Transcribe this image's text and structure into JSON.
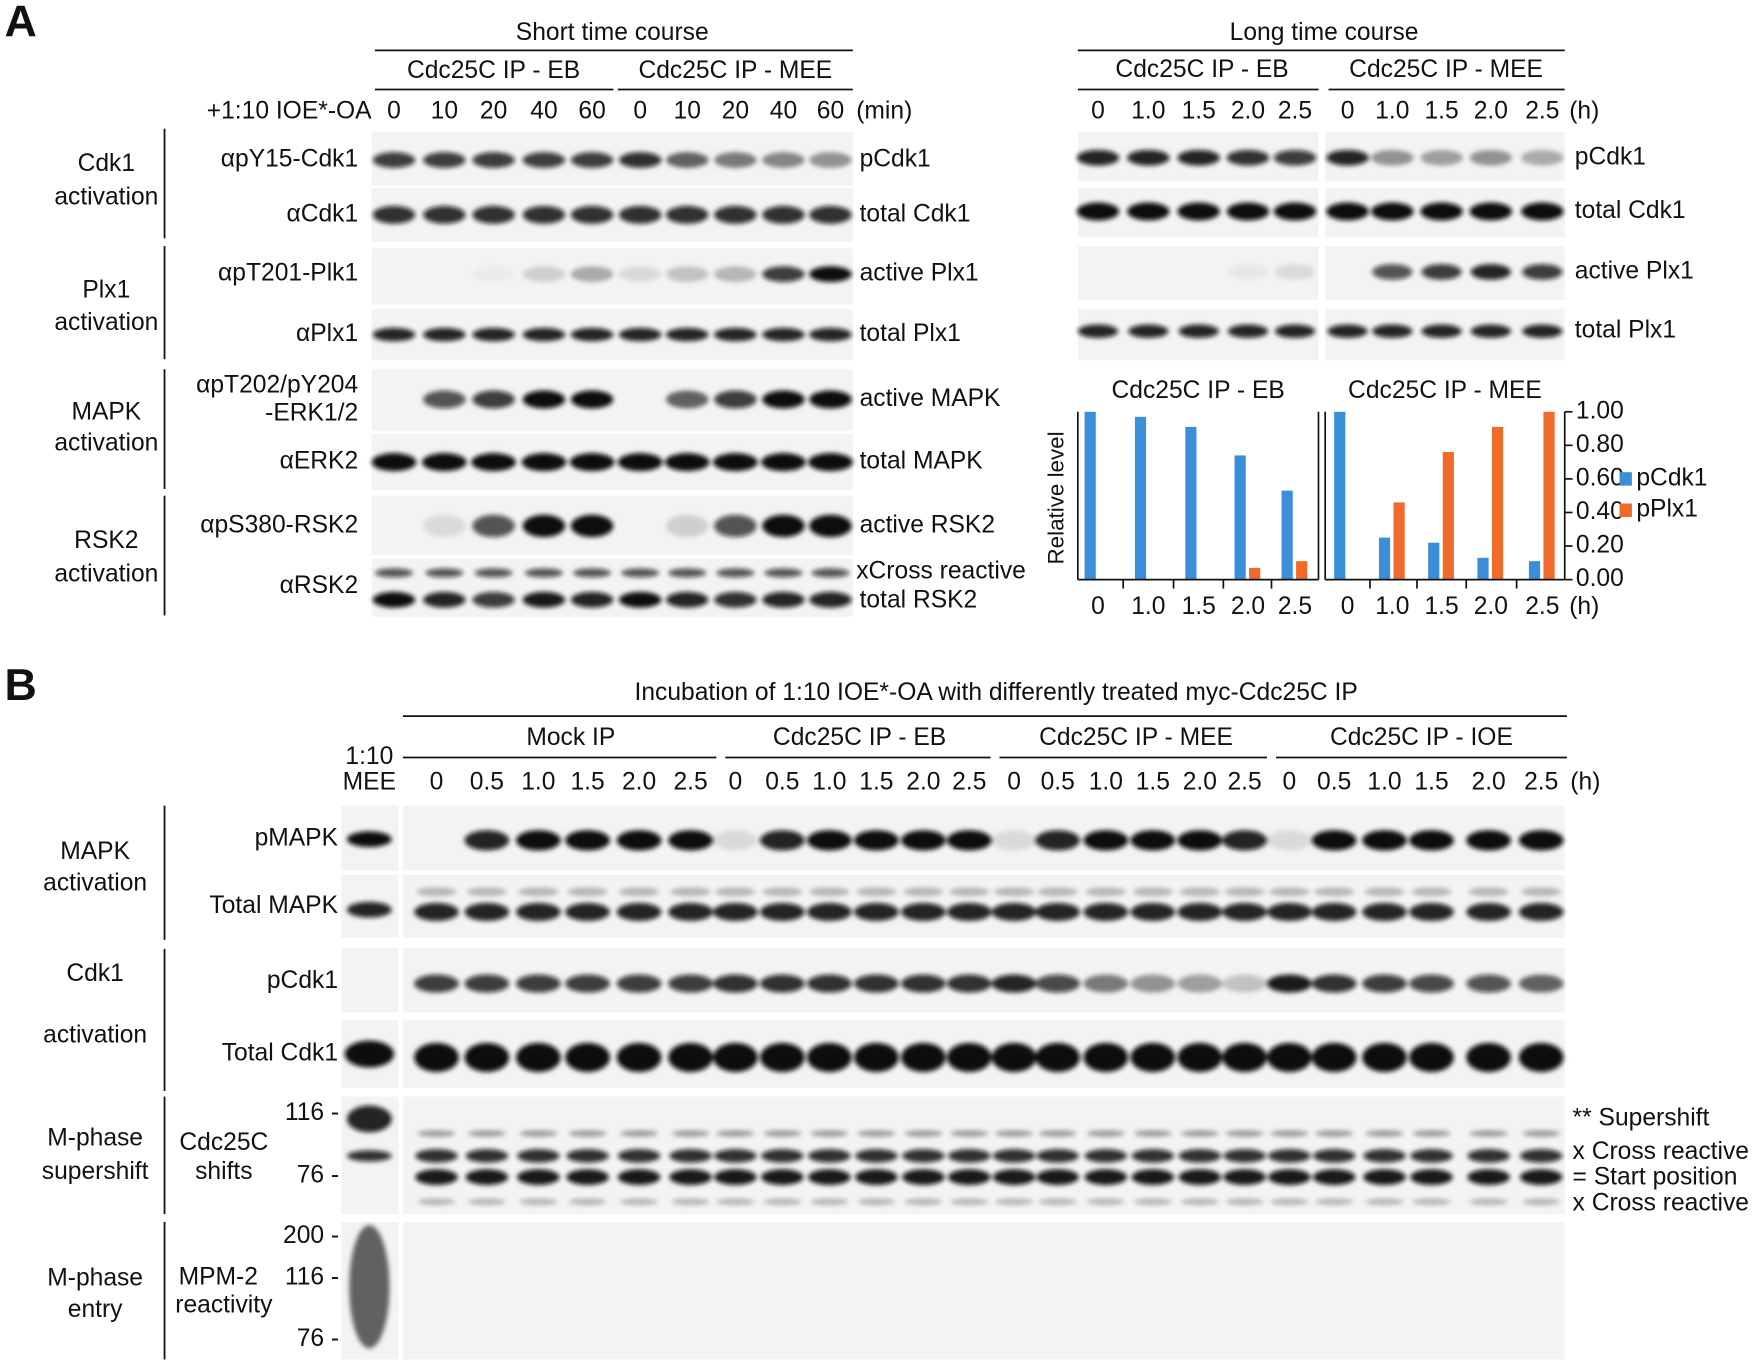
{
  "panel_a": {
    "label": "A",
    "short": {
      "title": "Short time course",
      "groups": [
        "Cdc25C IP - EB",
        "Cdc25C IP - MEE"
      ],
      "treatment": "+1:10 IOE*-OA",
      "times": [
        "0",
        "10",
        "20",
        "40",
        "60"
      ],
      "unit": "(min)"
    },
    "long": {
      "title": "Long time course",
      "groups": [
        "Cdc25C IP - EB",
        "Cdc25C IP - MEE"
      ],
      "times": [
        "0",
        "1.0",
        "1.5",
        "2.0",
        "2.5"
      ],
      "unit": "(h)"
    },
    "sections": [
      [
        "Cdk1",
        "activation"
      ],
      [
        "Plx1",
        "activation"
      ],
      [
        "MAPK",
        "activation"
      ],
      [
        "RSK2",
        "activation"
      ]
    ],
    "antibodies": [
      "αpY15-Cdk1",
      "αCdk1",
      "αpT201-Plk1",
      "αPlx1",
      "αpT202/pY204",
      "-ERK1/2",
      "αERK2",
      "αpS380-RSK2",
      "αRSK2"
    ],
    "short_targets": [
      "pCdk1",
      "total Cdk1",
      "active Plx1",
      "total Plx1",
      "active MAPK",
      "total MAPK",
      "active RSK2",
      "xCross reactive",
      "total RSK2"
    ],
    "long_targets": [
      "pCdk1",
      "total Cdk1",
      "active Plx1",
      "total Plx1"
    ]
  },
  "panel_b": {
    "label": "B",
    "title": "Incubation of 1:10 IOE*-OA with differently treated myc-Cdc25C IP",
    "marker_lane": [
      "1:10",
      "MEE"
    ],
    "groups": [
      "Mock IP",
      "Cdc25C IP - EB",
      "Cdc25C IP - MEE",
      "Cdc25C IP - IOE"
    ],
    "times": [
      "0",
      "0.5",
      "1.0",
      "1.5",
      "2.0",
      "2.5"
    ],
    "unit": "(h)",
    "sections": [
      [
        "MAPK",
        "activation"
      ],
      [
        "Cdk1",
        "activation"
      ],
      [
        "M-phase",
        "supershift"
      ],
      [
        "M-phase",
        "entry"
      ]
    ],
    "rows": [
      "pMAPK",
      "Total MAPK",
      "pCdk1",
      "Total Cdk1"
    ],
    "cdc25c_label": [
      "Cdc25C",
      "shifts"
    ],
    "mpm2_label": [
      "MPM-2",
      "reactivity"
    ],
    "size_markers": {
      "cdc25c": [
        "116 -",
        "76 -"
      ],
      "mpm2": [
        "200 -",
        "116 -",
        "76 -"
      ]
    },
    "annotations": [
      "** Supershift",
      "x Cross reactive",
      "= Start position",
      "x Cross reactive"
    ]
  },
  "chart_data": [
    {
      "type": "bar",
      "title": "Cdc25C IP - EB",
      "y_label": "Relative level",
      "categories": [
        "0",
        "1.0",
        "1.5",
        "2.0",
        "2.5"
      ],
      "ylim": [
        0,
        1
      ],
      "series": [
        {
          "color": "#3b8fd8",
          "values": [
            1.0,
            0.97,
            0.91,
            0.74,
            0.53
          ]
        },
        {
          "color": "#f06a2a",
          "values": [
            0,
            0,
            0,
            0.07,
            0.11
          ]
        }
      ]
    },
    {
      "type": "bar",
      "title": "Cdc25C IP - MEE",
      "categories": [
        "0",
        "1.0",
        "1.5",
        "2.0",
        "2.5"
      ],
      "x_unit": "(h)",
      "ylim": [
        0,
        1
      ],
      "yticks": [
        {
          "value": 1,
          "label": "1.00"
        },
        {
          "value": 0.8,
          "label": "0.80"
        },
        {
          "value": 0.6,
          "label": "0.60"
        },
        {
          "value": 0.4,
          "label": "0.40"
        },
        {
          "value": 0.2,
          "label": "0.20"
        },
        {
          "value": 0,
          "label": "0.00"
        }
      ],
      "legend": "right",
      "series": [
        {
          "name": "pCdk1",
          "color": "#3b8fd8",
          "values": [
            1.0,
            0.25,
            0.22,
            0.13,
            0.11
          ]
        },
        {
          "name": "pPlx1",
          "color": "#f06a2a",
          "values": [
            0,
            0.46,
            0.76,
            0.91,
            1.0
          ]
        }
      ]
    }
  ]
}
